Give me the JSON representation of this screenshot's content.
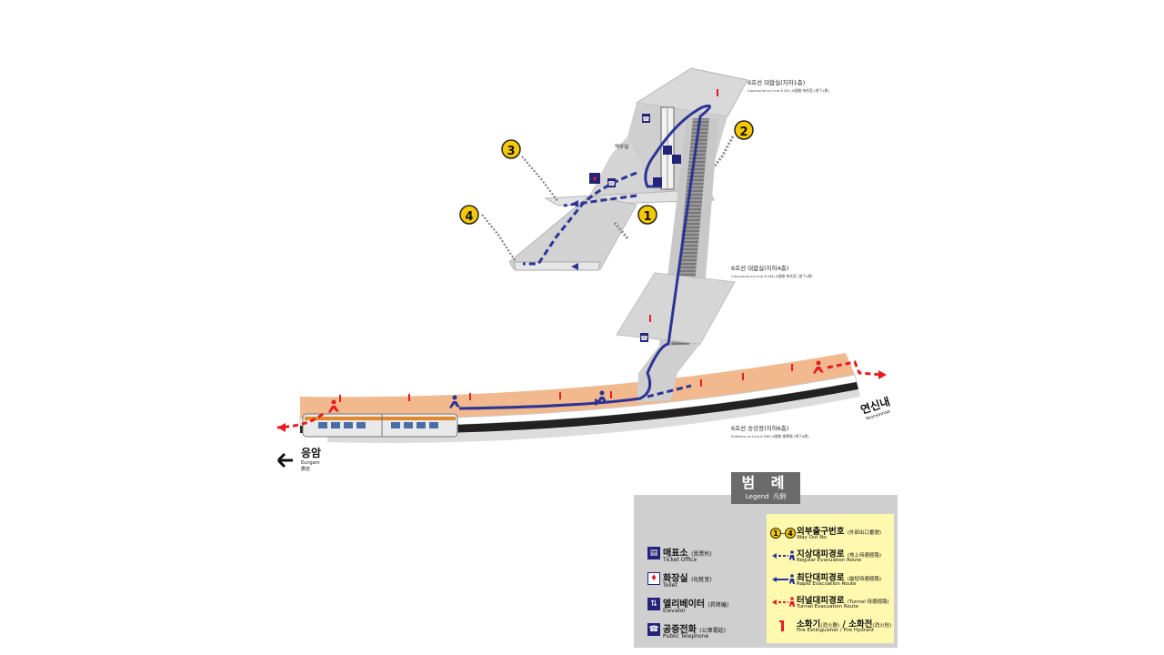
{
  "colors": {
    "route_blue": "#2b3595",
    "platform_orange": "#f3b98e",
    "concourse_grey": "#d4d4d4",
    "exit_yellow": "#f6c800",
    "tunnel_red": "#e51c23",
    "track_black": "#222222",
    "legend_bg": "#cfcfcf",
    "legend_note_bg": "#fff9b0"
  },
  "exits": [
    {
      "number": "1"
    },
    {
      "number": "2"
    },
    {
      "number": "3"
    },
    {
      "number": "4"
    }
  ],
  "levels": {
    "b1": {
      "ko": "6호선 대합실(지하1층)",
      "en": "Concourse on Line 6 (B1) 6號線 待合室 (地下1層)"
    },
    "b4": {
      "ko": "6호선 대합실(지하4층)",
      "en": "Concourse on Line 6 (B4) 6號線 待合室 (地下4層)"
    },
    "platform": {
      "ko": "6호선 승강장(지하6층)",
      "en": "Platform on Line 6 (B6) 6號線 乘降場 (地下6層)"
    },
    "station_office": "역무실"
  },
  "directions": {
    "left": {
      "ko": "응암",
      "en": "Eungam",
      "hanja": "鷹岩",
      "arrow": "left-arrow-icon"
    },
    "right": {
      "ko": "연신내",
      "en": "Yeonsinnae"
    }
  },
  "legend": {
    "title_ko": "범 례",
    "title_en": "Legend",
    "title_hanja": "凡例",
    "facilities": [
      {
        "icon": "ticket-office-icon",
        "ko": "매표소",
        "hanja": "(賣票所)",
        "en": "Ticket Office"
      },
      {
        "icon": "toilet-icon",
        "ko": "화장실",
        "hanja": "(化粧室)",
        "en": "Toilet"
      },
      {
        "icon": "elevator-icon",
        "ko": "엘리베이터",
        "hanja": "(昇降機)",
        "en": "Elevator"
      },
      {
        "icon": "telephone-icon",
        "ko": "공중전화",
        "hanja": "(公衆電話)",
        "en": "Public Telephone"
      }
    ],
    "routes": [
      {
        "icon": "way-out-number-icon",
        "ko": "외부출구번호",
        "hanja": "(外部出口番號)",
        "en": "Way Out No."
      },
      {
        "icon": "regular-evacuation-icon",
        "ko": "지상대피경로",
        "hanja": "(地上待避經路)",
        "en": "Regular Evacuation Route"
      },
      {
        "icon": "rapid-evacuation-icon",
        "ko": "최단대피경로",
        "hanja": "(最短待避經路)",
        "en": "Rapid Evacuation Route"
      },
      {
        "icon": "tunnel-evacuation-icon",
        "ko": "터널대피경로",
        "hanja": "(Tunnel 待避經路)",
        "en": "Tunnel Evacuation Route"
      }
    ],
    "fire": {
      "extinguisher_ko": "소화기",
      "extinguisher_hanja": "(消火器)",
      "extinguisher_en": "Fire Extinguisher",
      "hydrant_ko": "소화전",
      "hydrant_hanja": "(消火栓)",
      "hydrant_en": "Fire Hydrant"
    },
    "way_out_range_from": "1",
    "way_out_range_sep": "~",
    "way_out_range_to": "4"
  }
}
